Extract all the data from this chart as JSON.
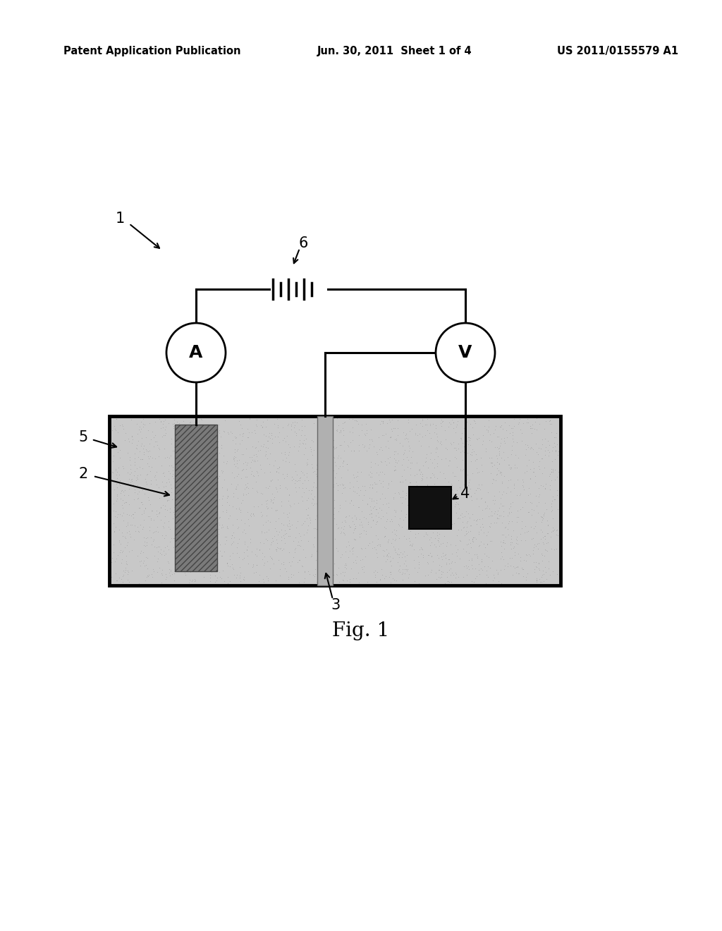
{
  "bg_color": "#ffffff",
  "header_left": "Patent Application Publication",
  "header_center": "Jun. 30, 2011  Sheet 1 of 4",
  "header_right": "US 2011/0155579 A1",
  "header_fontsize": 10.5,
  "fig_label": "Fig. 1",
  "fig_label_fontsize": 20,
  "label_fontsize": 15,
  "circuit_color": "#000000",
  "tank_fill": "#c8c8c8",
  "tank_border": "#000000",
  "electrode_anode_fill": "#7a7a7a",
  "electrode_ref_fill": "#b0b0b0",
  "working_electrode_fill": "#111111"
}
